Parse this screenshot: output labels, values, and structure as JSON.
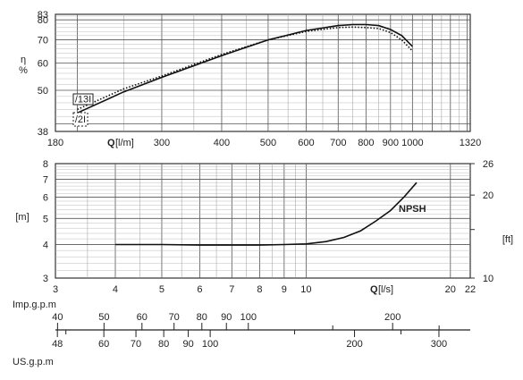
{
  "chart_data": [
    {
      "id": "efficiency",
      "type": "line",
      "x_scale": "log",
      "y_scale": "log",
      "xlim": [
        180,
        1320
      ],
      "ylim": [
        38,
        83
      ],
      "x_ticks": [
        180,
        200,
        300,
        400,
        500,
        600,
        700,
        800,
        900,
        1000,
        1320
      ],
      "x_tick_labels": [
        "180",
        "",
        "300",
        "400",
        "500",
        "600",
        "700",
        "800",
        "900",
        "1000",
        "1320"
      ],
      "y_ticks": [
        38,
        50,
        60,
        70,
        80,
        83
      ],
      "y_tick_labels": [
        "38",
        "50",
        "60",
        "70",
        "80",
        "83"
      ],
      "y_label_top": "η",
      "y_label_bottom": "%",
      "x_label_bold": "Q",
      "x_label_unit": "[l/m]",
      "grid": true,
      "series": [
        {
          "name": "/13I",
          "style": "solid",
          "x": [
            200,
            250,
            300,
            400,
            500,
            600,
            700,
            750,
            800,
            850,
            900,
            950,
            1000
          ],
          "y": [
            43,
            49.5,
            54.5,
            63,
            70,
            74.5,
            77,
            77.5,
            77.5,
            77,
            75,
            72,
            67
          ]
        },
        {
          "name": "/2I",
          "style": "dotted",
          "x": [
            200,
            250,
            300,
            400,
            500,
            600,
            700,
            750,
            800,
            850,
            900,
            950,
            1000
          ],
          "y": [
            44,
            50.5,
            55,
            63.5,
            70,
            74,
            76,
            76.2,
            76,
            75.5,
            73.5,
            70,
            65
          ]
        }
      ],
      "annotations": [
        "/13I",
        "/2I"
      ]
    },
    {
      "id": "npsh",
      "type": "line",
      "x_scale": "log",
      "y_scale": "log",
      "xlim": [
        3,
        22
      ],
      "ylim": [
        3,
        8
      ],
      "x_ticks": [
        3,
        4,
        5,
        6,
        7,
        8,
        9,
        10,
        20,
        22
      ],
      "x_tick_labels": [
        "3",
        "4",
        "5",
        "6",
        "7",
        "8",
        "9",
        "10",
        "20",
        "22"
      ],
      "y_ticks": [
        3,
        4,
        5,
        6,
        7,
        8
      ],
      "y_tick_labels": [
        "3",
        "4",
        "5",
        "6",
        "7",
        "8"
      ],
      "y_label_left": "[m]",
      "y2_ticks": [
        10,
        20,
        26
      ],
      "y2_tick_labels": [
        "10",
        "20",
        "26"
      ],
      "y2_label": "[ft]",
      "x_label_bold": "Q",
      "x_label_unit": "[l/s]",
      "grid": true,
      "series": [
        {
          "name": "NPSH",
          "style": "solid",
          "x": [
            4,
            5,
            6,
            7,
            8,
            9,
            10,
            11,
            12,
            13,
            14,
            15,
            16,
            17
          ],
          "y": [
            4,
            4,
            3.98,
            3.98,
            3.98,
            4,
            4.02,
            4.1,
            4.25,
            4.5,
            4.9,
            5.35,
            6,
            6.8
          ]
        }
      ]
    }
  ],
  "conversion_scales": {
    "imperial": {
      "label": "Imp.g.p.m",
      "labeled_values": [
        "40",
        "50",
        "60",
        "70",
        "80",
        "90",
        "100",
        "200"
      ]
    },
    "us": {
      "label": "US.g.p.m",
      "labeled_values": [
        "48",
        "60",
        "70",
        "80",
        "90",
        "100",
        "200",
        "300"
      ]
    }
  }
}
